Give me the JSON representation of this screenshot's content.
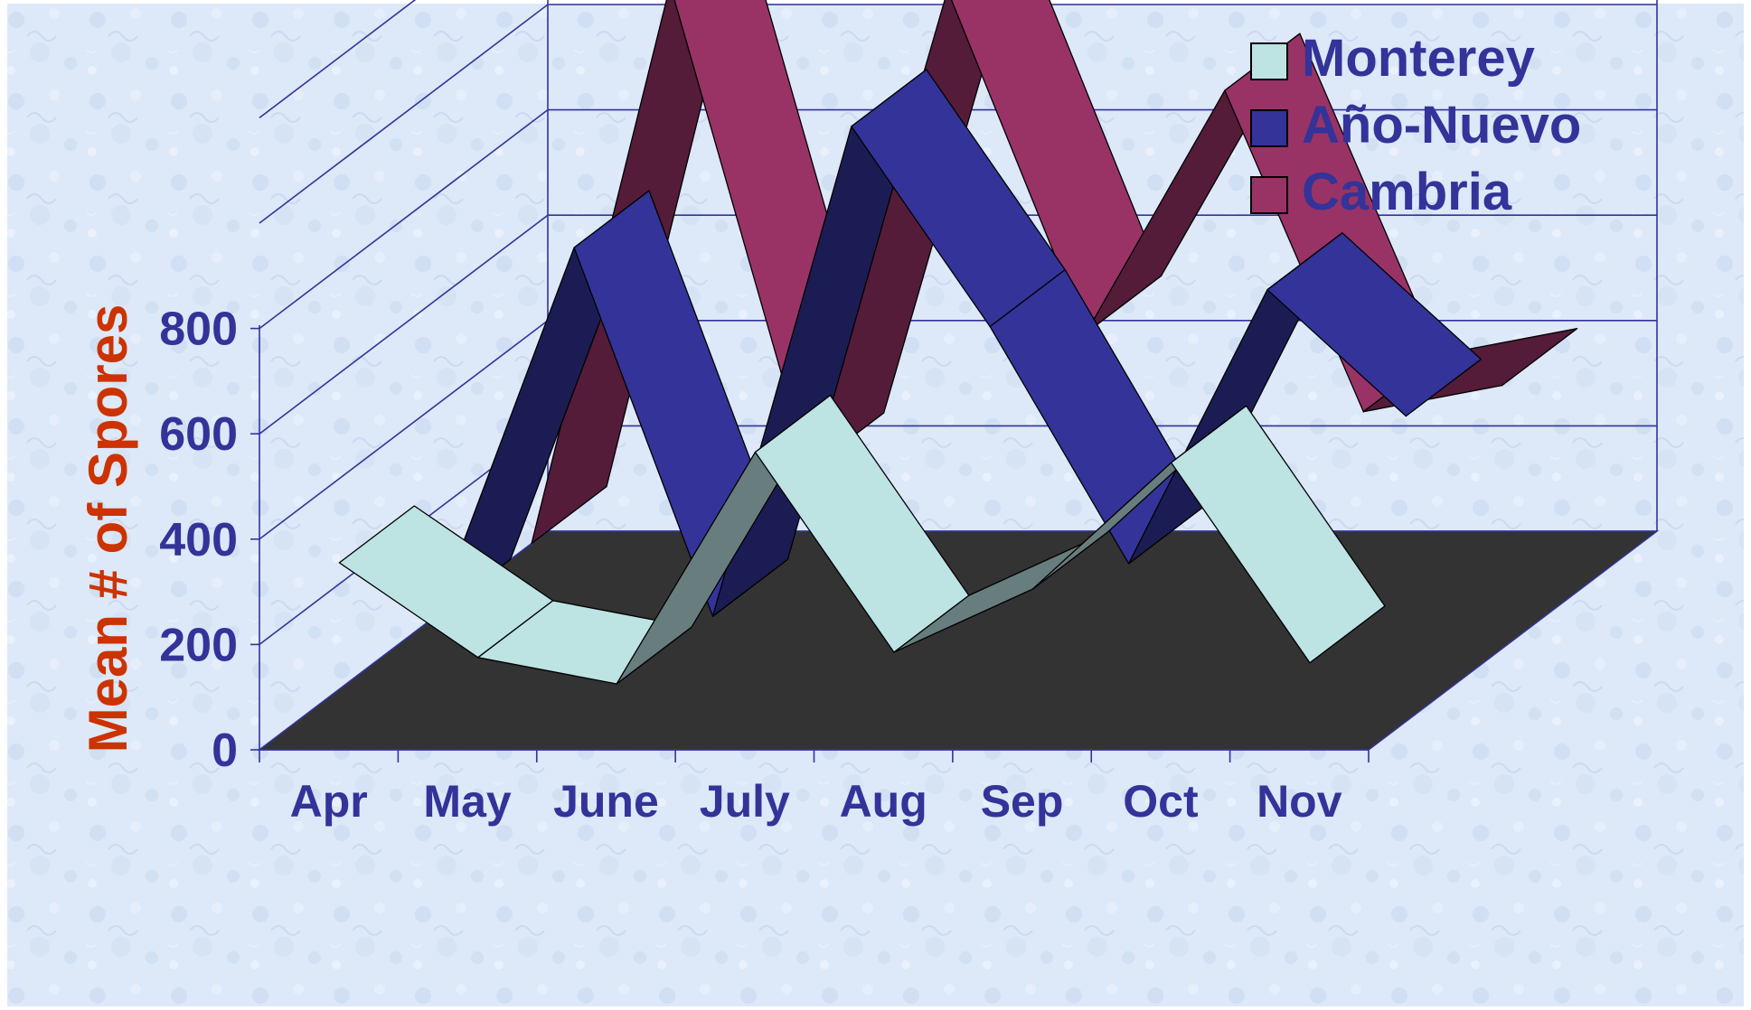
{
  "chart_data": {
    "type": "area",
    "style": "3d-ribbon",
    "title": "",
    "xlabel": "",
    "ylabel": "Mean # of Spores",
    "categories": [
      "Apr",
      "May",
      "June",
      "July",
      "Aug",
      "Sep",
      "Oct",
      "Nov"
    ],
    "yticks": [
      "0",
      "200",
      "400",
      "600",
      "800"
    ],
    "ylim": [
      0,
      1200
    ],
    "grid": true,
    "legend_position": "top-right",
    "series": [
      {
        "name": "Monterey",
        "values": [
          340,
          160,
          110,
          550,
          170,
          290,
          530,
          150
        ],
        "color": "#bde3e3"
      },
      {
        "name": "Año-Nuevo",
        "values": [
          100,
          800,
          100,
          1030,
          650,
          200,
          720,
          480
        ],
        "color": "#333399"
      },
      {
        "name": "Cambria",
        "values": [
          100,
          1160,
          240,
          1150,
          500,
          960,
          350,
          400
        ],
        "color": "#993366"
      }
    ],
    "colors": {
      "axis_text": "#333399",
      "ylabel": "#cc3300",
      "floor": "#333333",
      "grid": "#333399",
      "background": "#dde8f8"
    }
  }
}
